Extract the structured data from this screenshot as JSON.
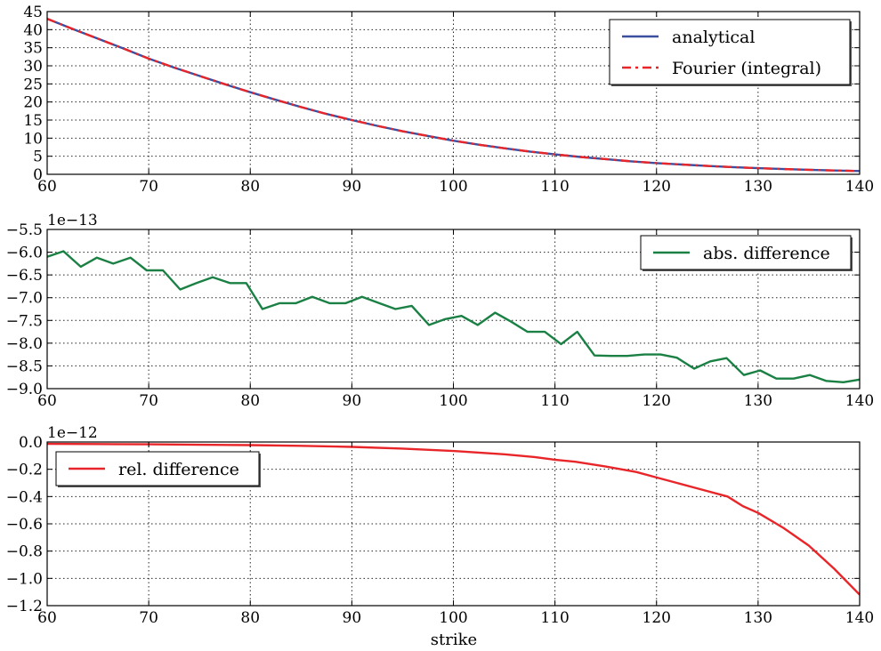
{
  "figure": {
    "xlabel": "strike"
  },
  "chart_data": [
    {
      "type": "line",
      "xlim": [
        60,
        140
      ],
      "ylim": [
        0,
        45
      ],
      "xticks": [
        60,
        70,
        80,
        90,
        100,
        110,
        120,
        130,
        140
      ],
      "xtick_labels": [
        "60",
        "70",
        "80",
        "90",
        "100",
        "110",
        "120",
        "130",
        "140"
      ],
      "yticks": [
        0,
        5,
        10,
        15,
        20,
        25,
        30,
        35,
        40,
        45
      ],
      "ytick_labels": [
        "0",
        "5",
        "10",
        "15",
        "20",
        "25",
        "30",
        "35",
        "40",
        "45"
      ],
      "grid": true,
      "legend_position": "top-right",
      "x": [
        60,
        62.5,
        65,
        67.5,
        70,
        72.5,
        75,
        77.5,
        80,
        82.5,
        85,
        87.5,
        90,
        92.5,
        95,
        97.5,
        100,
        102.5,
        105,
        107.5,
        110,
        112.5,
        115,
        117.5,
        120,
        122.5,
        125,
        127.5,
        130,
        132.5,
        135,
        137.5,
        140
      ],
      "series": [
        {
          "name": "analytical",
          "color": "#3a4fa0",
          "dash": "solid",
          "values": [
            43.0,
            40.2,
            37.5,
            34.8,
            32.0,
            29.5,
            27.2,
            24.9,
            22.7,
            20.6,
            18.6,
            16.7,
            15.0,
            13.4,
            11.9,
            10.6,
            9.3,
            8.2,
            7.2,
            6.3,
            5.5,
            4.8,
            4.2,
            3.6,
            3.1,
            2.7,
            2.3,
            2.0,
            1.7,
            1.45,
            1.25,
            1.05,
            0.9
          ]
        },
        {
          "name": "Fourier (integral)",
          "color": "#e8262a",
          "dash": "dashdot",
          "values": [
            43.0,
            40.2,
            37.5,
            34.8,
            32.0,
            29.5,
            27.2,
            24.9,
            22.7,
            20.6,
            18.6,
            16.7,
            15.0,
            13.4,
            11.9,
            10.6,
            9.3,
            8.2,
            7.2,
            6.3,
            5.5,
            4.8,
            4.2,
            3.6,
            3.1,
            2.7,
            2.3,
            2.0,
            1.7,
            1.45,
            1.25,
            1.05,
            0.9
          ]
        }
      ]
    },
    {
      "type": "line",
      "xlim": [
        60,
        140
      ],
      "ylim": [
        -9.0,
        -5.5
      ],
      "offset_label": "1e−13",
      "xticks": [
        60,
        70,
        80,
        90,
        100,
        110,
        120,
        130,
        140
      ],
      "xtick_labels": [
        "60",
        "70",
        "80",
        "90",
        "100",
        "110",
        "120",
        "130",
        "140"
      ],
      "yticks": [
        -5.5,
        -6.0,
        -6.5,
        -7.0,
        -7.5,
        -8.0,
        -8.5,
        -9.0
      ],
      "ytick_labels": [
        "−5.5",
        "−6.0",
        "−6.5",
        "−7.0",
        "−7.5",
        "−8.0",
        "−8.5",
        "−9.0"
      ],
      "grid": true,
      "legend_position": "top-right",
      "series": [
        {
          "name": "abs. difference",
          "color": "#1a8044",
          "dash": "solid",
          "x": [
            60,
            61.6,
            63.3,
            64.9,
            66.5,
            68.2,
            69.8,
            71.4,
            73.1,
            74.7,
            76.3,
            78.0,
            79.6,
            81.2,
            82.9,
            84.5,
            86.1,
            87.8,
            89.4,
            91.0,
            92.7,
            94.3,
            95.9,
            97.6,
            99.2,
            100.8,
            102.4,
            104.1,
            105.7,
            107.3,
            109.0,
            110.6,
            112.2,
            113.9,
            115.5,
            117.1,
            118.8,
            120.4,
            122.0,
            123.7,
            125.3,
            126.9,
            128.6,
            130.2,
            131.8,
            133.5,
            135.1,
            136.7,
            138.4,
            140
          ],
          "values": [
            -6.1,
            -5.98,
            -6.32,
            -6.12,
            -6.25,
            -6.12,
            -6.4,
            -6.4,
            -6.82,
            -6.68,
            -6.55,
            -6.68,
            -6.68,
            -7.25,
            -7.12,
            -7.12,
            -6.98,
            -7.12,
            -7.12,
            -6.98,
            -7.12,
            -7.25,
            -7.18,
            -7.6,
            -7.47,
            -7.4,
            -7.6,
            -7.33,
            -7.53,
            -7.75,
            -7.75,
            -8.02,
            -7.75,
            -8.27,
            -8.28,
            -8.28,
            -8.25,
            -8.25,
            -8.32,
            -8.56,
            -8.4,
            -8.33,
            -8.7,
            -8.6,
            -8.78,
            -8.78,
            -8.7,
            -8.83,
            -8.86,
            -8.8
          ]
        }
      ]
    },
    {
      "type": "line",
      "xlim": [
        60,
        140
      ],
      "ylim": [
        -1.2,
        0.0
      ],
      "offset_label": "1e−12",
      "xticks": [
        60,
        70,
        80,
        90,
        100,
        110,
        120,
        130,
        140
      ],
      "xtick_labels": [
        "60",
        "70",
        "80",
        "90",
        "100",
        "110",
        "120",
        "130",
        "140"
      ],
      "yticks": [
        0.0,
        -0.2,
        -0.4,
        -0.6,
        -0.8,
        -1.0,
        -1.2
      ],
      "ytick_labels": [
        "0.0",
        "−0.2",
        "−0.4",
        "−0.6",
        "−0.8",
        "−1.0",
        "−1.2"
      ],
      "grid": true,
      "legend_position": "top-left",
      "xlabel": "strike",
      "series": [
        {
          "name": "rel. difference",
          "color": "#e8262a",
          "dash": "solid",
          "x": [
            60,
            65,
            70,
            75,
            80,
            85,
            90,
            95,
            100,
            105,
            108,
            110,
            112,
            115,
            118,
            120,
            122,
            124,
            127,
            128.5,
            130,
            132.5,
            135,
            137.5,
            140
          ],
          "values": [
            -0.014,
            -0.015,
            -0.017,
            -0.02,
            -0.023,
            -0.028,
            -0.036,
            -0.048,
            -0.066,
            -0.09,
            -0.11,
            -0.13,
            -0.145,
            -0.18,
            -0.22,
            -0.26,
            -0.3,
            -0.34,
            -0.4,
            -0.47,
            -0.52,
            -0.63,
            -0.76,
            -0.93,
            -1.12
          ]
        }
      ]
    }
  ]
}
